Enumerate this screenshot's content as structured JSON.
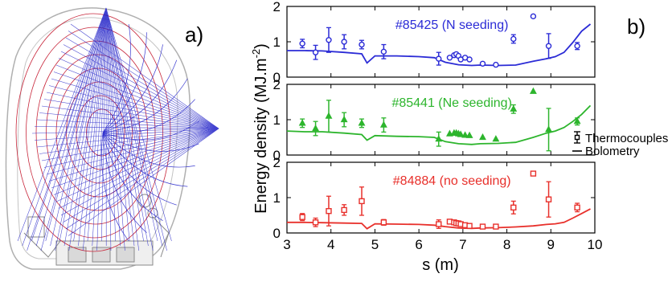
{
  "figure": {
    "label_a": "a)",
    "label_b": "b)"
  },
  "chart_data": {
    "type": "scatter",
    "xlabel": "s (m)",
    "ylabel": "Energy density (MJ.m",
    "ylabel_sup": "-2",
    "ylabel_close": ")",
    "xlim": [
      3,
      10
    ],
    "ylim": [
      0,
      2
    ],
    "x_ticks": [
      "3",
      "4",
      "5",
      "6",
      "7",
      "8",
      "9",
      "10"
    ],
    "y_ticks": [
      "0",
      "1",
      "2"
    ],
    "legend": {
      "markers": "Thermocouples",
      "line": "Bolometry",
      "placement": "right"
    },
    "panels": [
      {
        "annotation": "#85425 (N seeding)",
        "color": "#2b2bd6",
        "marker": "circle",
        "bolometry": {
          "x": [
            3.0,
            3.4,
            3.8,
            4.3,
            4.7,
            4.82,
            5.0,
            5.5,
            6.0,
            6.35,
            6.6,
            6.9,
            7.2,
            7.4,
            7.8,
            8.2,
            8.6,
            8.9,
            9.1,
            9.3,
            9.5,
            9.7,
            9.9
          ],
          "y": [
            0.75,
            0.75,
            0.74,
            0.7,
            0.66,
            0.4,
            0.6,
            0.6,
            0.58,
            0.55,
            0.42,
            0.35,
            0.33,
            0.34,
            0.33,
            0.34,
            0.45,
            0.52,
            0.58,
            0.7,
            0.98,
            1.3,
            1.5
          ]
        },
        "thermocouples": {
          "x": [
            3.35,
            3.65,
            3.95,
            4.3,
            4.7,
            5.2,
            6.45,
            6.7,
            6.8,
            6.85,
            6.9,
            6.95,
            7.05,
            7.15,
            7.45,
            7.75,
            8.15,
            8.6,
            8.95,
            9.6
          ],
          "y": [
            0.95,
            0.7,
            1.05,
            1.0,
            0.92,
            0.72,
            0.52,
            0.55,
            0.62,
            0.65,
            0.6,
            0.5,
            0.55,
            0.5,
            0.38,
            0.35,
            1.08,
            1.72,
            0.88,
            0.88
          ],
          "err": [
            0.12,
            0.2,
            0.35,
            0.2,
            0.12,
            0.2,
            0.18,
            0,
            0,
            0,
            0,
            0,
            0,
            0,
            0,
            0,
            0.12,
            0,
            0.35,
            0.1
          ]
        }
      },
      {
        "annotation": "#85441 (Ne seeding)",
        "color": "#2db52d",
        "marker": "triangle",
        "bolometry": {
          "x": [
            3.0,
            3.4,
            3.8,
            4.3,
            4.7,
            4.82,
            5.0,
            5.5,
            6.0,
            6.35,
            6.6,
            6.9,
            7.2,
            7.4,
            7.8,
            8.2,
            8.6,
            8.9,
            9.1,
            9.3,
            9.5,
            9.7,
            9.9
          ],
          "y": [
            0.68,
            0.66,
            0.66,
            0.62,
            0.58,
            0.42,
            0.55,
            0.53,
            0.52,
            0.5,
            0.38,
            0.32,
            0.3,
            0.32,
            0.33,
            0.36,
            0.5,
            0.62,
            0.68,
            0.78,
            0.95,
            1.15,
            1.4
          ]
        },
        "thermocouples": {
          "x": [
            3.35,
            3.65,
            3.95,
            4.3,
            4.7,
            5.2,
            6.45,
            6.7,
            6.8,
            6.85,
            6.9,
            6.95,
            7.05,
            7.15,
            7.45,
            7.75,
            8.15,
            8.6,
            8.95,
            9.6
          ],
          "y": [
            0.9,
            0.75,
            1.1,
            1.0,
            0.9,
            0.85,
            0.45,
            0.6,
            0.62,
            0.62,
            0.6,
            0.58,
            0.56,
            0.55,
            0.5,
            0.45,
            1.3,
            1.8,
            0.72,
            0.95
          ],
          "err": [
            0.12,
            0.2,
            0.45,
            0.2,
            0.12,
            0.2,
            0.2,
            0,
            0,
            0,
            0,
            0,
            0,
            0,
            0,
            0,
            0.12,
            0,
            0.6,
            0.1
          ]
        }
      },
      {
        "annotation": "#84884 (no seeding)",
        "color": "#e8302b",
        "marker": "square",
        "bolometry": {
          "x": [
            3.0,
            3.4,
            3.8,
            4.3,
            4.7,
            4.82,
            5.0,
            5.5,
            6.0,
            6.35,
            6.6,
            6.9,
            7.2,
            7.4,
            7.8,
            8.2,
            8.6,
            8.9,
            9.1,
            9.3,
            9.5,
            9.7,
            9.9
          ],
          "y": [
            0.3,
            0.3,
            0.29,
            0.28,
            0.27,
            0.12,
            0.26,
            0.25,
            0.24,
            0.22,
            0.18,
            0.14,
            0.13,
            0.14,
            0.15,
            0.17,
            0.2,
            0.24,
            0.26,
            0.3,
            0.42,
            0.55,
            0.68
          ]
        },
        "thermocouples": {
          "x": [
            3.35,
            3.65,
            3.95,
            4.3,
            4.7,
            5.2,
            6.45,
            6.7,
            6.8,
            6.85,
            6.9,
            6.95,
            7.05,
            7.15,
            7.45,
            7.75,
            8.15,
            8.6,
            8.95,
            9.6
          ],
          "y": [
            0.45,
            0.3,
            0.62,
            0.65,
            0.9,
            0.3,
            0.25,
            0.32,
            0.3,
            0.28,
            0.27,
            0.25,
            0.22,
            0.2,
            0.18,
            0.18,
            0.72,
            1.68,
            0.95,
            0.72
          ],
          "err": [
            0.1,
            0.12,
            0.42,
            0.15,
            0.4,
            0.08,
            0.12,
            0,
            0,
            0,
            0,
            0,
            0,
            0,
            0,
            0,
            0.18,
            0,
            0.5,
            0.12
          ]
        }
      }
    ]
  }
}
